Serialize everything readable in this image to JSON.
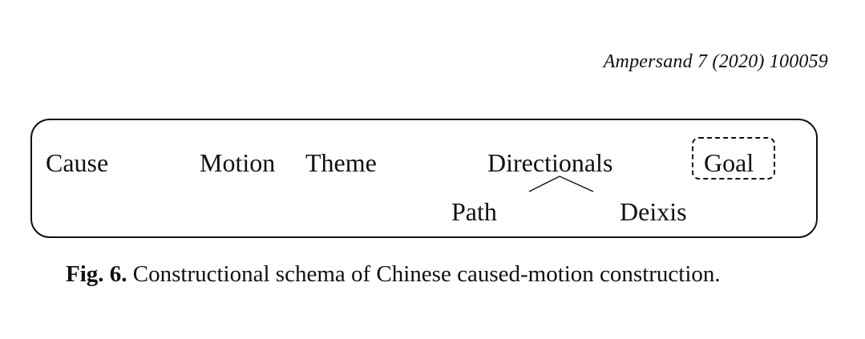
{
  "header": {
    "citation": "Ampersand 7 (2020) 100059"
  },
  "schema": {
    "top_row": {
      "cause": "Cause",
      "motion": "Motion",
      "theme": "Theme",
      "directionals": "Directionals",
      "goal": "Goal"
    },
    "bottom_row": {
      "path": "Path",
      "deixis": "Deixis"
    }
  },
  "caption": {
    "label": "Fig. 6.",
    "text": "Constructional schema of Chinese caused-motion construction."
  }
}
